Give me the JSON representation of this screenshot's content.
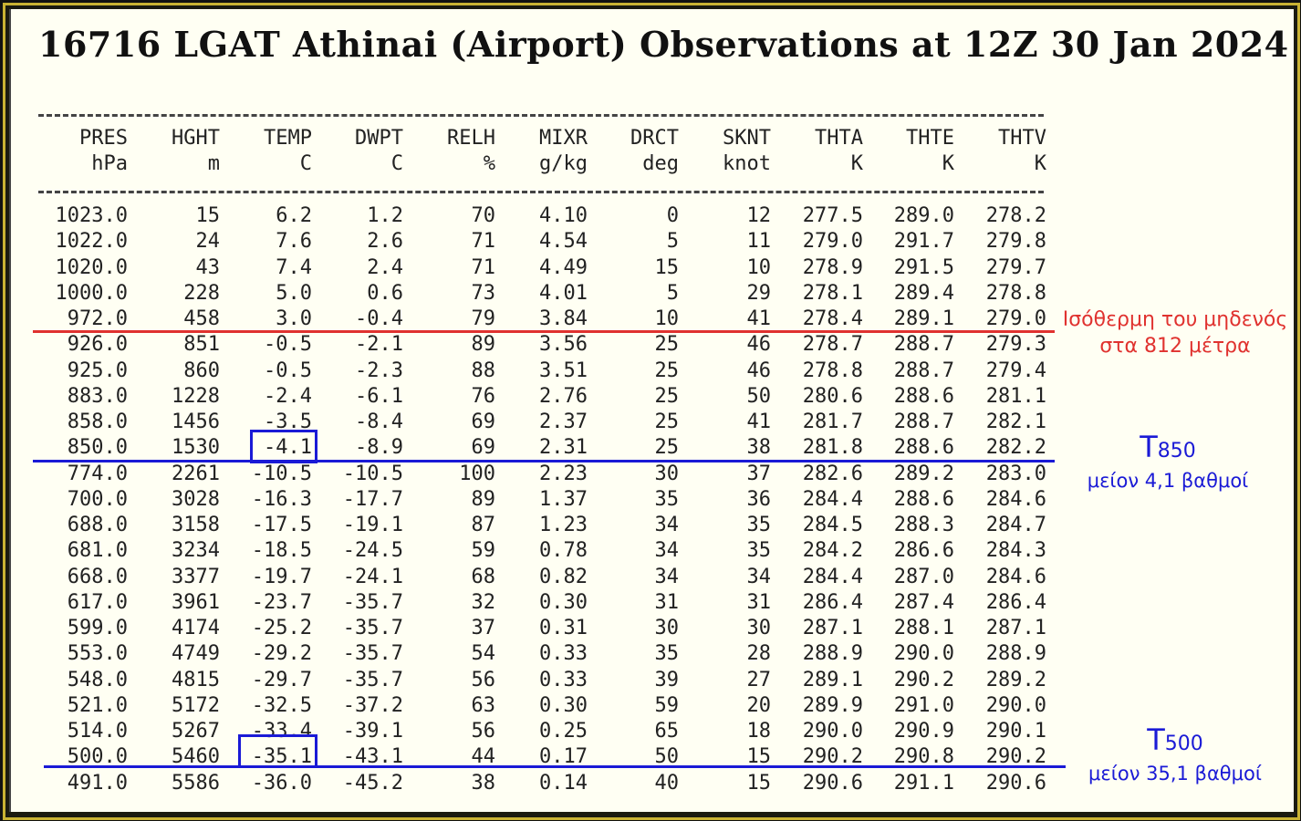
{
  "title": "16716 LGAT Athinai (Airport) Observations at 12Z 30 Jan 2024",
  "columns": [
    {
      "name": "PRES",
      "unit": "hPa"
    },
    {
      "name": "HGHT",
      "unit": "m"
    },
    {
      "name": "TEMP",
      "unit": "C"
    },
    {
      "name": "DWPT",
      "unit": "C"
    },
    {
      "name": "RELH",
      "unit": "%"
    },
    {
      "name": "MIXR",
      "unit": "g/kg"
    },
    {
      "name": "DRCT",
      "unit": "deg"
    },
    {
      "name": "SKNT",
      "unit": "knot"
    },
    {
      "name": "THTA",
      "unit": "K"
    },
    {
      "name": "THTE",
      "unit": "K"
    },
    {
      "name": "THTV",
      "unit": "K"
    }
  ],
  "rows": [
    [
      "1023.0",
      "15",
      "6.2",
      "1.2",
      "70",
      "4.10",
      "0",
      "12",
      "277.5",
      "289.0",
      "278.2"
    ],
    [
      "1022.0",
      "24",
      "7.6",
      "2.6",
      "71",
      "4.54",
      "5",
      "11",
      "279.0",
      "291.7",
      "279.8"
    ],
    [
      "1020.0",
      "43",
      "7.4",
      "2.4",
      "71",
      "4.49",
      "15",
      "10",
      "278.9",
      "291.5",
      "279.7"
    ],
    [
      "1000.0",
      "228",
      "5.0",
      "0.6",
      "73",
      "4.01",
      "5",
      "29",
      "278.1",
      "289.4",
      "278.8"
    ],
    [
      "972.0",
      "458",
      "3.0",
      "-0.4",
      "79",
      "3.84",
      "10",
      "41",
      "278.4",
      "289.1",
      "279.0"
    ],
    [
      "926.0",
      "851",
      "-0.5",
      "-2.1",
      "89",
      "3.56",
      "25",
      "46",
      "278.7",
      "288.7",
      "279.3"
    ],
    [
      "925.0",
      "860",
      "-0.5",
      "-2.3",
      "88",
      "3.51",
      "25",
      "46",
      "278.8",
      "288.7",
      "279.4"
    ],
    [
      "883.0",
      "1228",
      "-2.4",
      "-6.1",
      "76",
      "2.76",
      "25",
      "50",
      "280.6",
      "288.6",
      "281.1"
    ],
    [
      "858.0",
      "1456",
      "-3.5",
      "-8.4",
      "69",
      "2.37",
      "25",
      "41",
      "281.7",
      "288.7",
      "282.1"
    ],
    [
      "850.0",
      "1530",
      "-4.1",
      "-8.9",
      "69",
      "2.31",
      "25",
      "38",
      "281.8",
      "288.6",
      "282.2"
    ],
    [
      "774.0",
      "2261",
      "-10.5",
      "-10.5",
      "100",
      "2.23",
      "30",
      "37",
      "282.6",
      "289.2",
      "283.0"
    ],
    [
      "700.0",
      "3028",
      "-16.3",
      "-17.7",
      "89",
      "1.37",
      "35",
      "36",
      "284.4",
      "288.6",
      "284.6"
    ],
    [
      "688.0",
      "3158",
      "-17.5",
      "-19.1",
      "87",
      "1.23",
      "34",
      "35",
      "284.5",
      "288.3",
      "284.7"
    ],
    [
      "681.0",
      "3234",
      "-18.5",
      "-24.5",
      "59",
      "0.78",
      "34",
      "35",
      "284.2",
      "286.6",
      "284.3"
    ],
    [
      "668.0",
      "3377",
      "-19.7",
      "-24.1",
      "68",
      "0.82",
      "34",
      "34",
      "284.4",
      "287.0",
      "284.6"
    ],
    [
      "617.0",
      "3961",
      "-23.7",
      "-35.7",
      "32",
      "0.30",
      "31",
      "31",
      "286.4",
      "287.4",
      "286.4"
    ],
    [
      "599.0",
      "4174",
      "-25.2",
      "-35.7",
      "37",
      "0.31",
      "30",
      "30",
      "287.1",
      "288.1",
      "287.1"
    ],
    [
      "553.0",
      "4749",
      "-29.2",
      "-35.7",
      "54",
      "0.33",
      "35",
      "28",
      "288.9",
      "290.0",
      "288.9"
    ],
    [
      "548.0",
      "4815",
      "-29.7",
      "-35.7",
      "56",
      "0.33",
      "39",
      "27",
      "289.1",
      "290.2",
      "289.2"
    ],
    [
      "521.0",
      "5172",
      "-32.5",
      "-37.2",
      "63",
      "0.30",
      "59",
      "20",
      "289.9",
      "291.0",
      "290.0"
    ],
    [
      "514.0",
      "5267",
      "-33.4",
      "-39.1",
      "56",
      "0.25",
      "65",
      "18",
      "290.0",
      "290.9",
      "290.1"
    ],
    [
      "500.0",
      "5460",
      "-35.1",
      "-43.1",
      "44",
      "0.17",
      "50",
      "15",
      "290.2",
      "290.8",
      "290.2"
    ],
    [
      "491.0",
      "5586",
      "-36.0",
      "-45.2",
      "38",
      "0.14",
      "40",
      "15",
      "290.6",
      "291.1",
      "290.6"
    ]
  ],
  "annotations": {
    "freezing_level_line1": "Ισόθερμη του μηδενός",
    "freezing_level_line2": "στα 812 μέτρα",
    "t850_label": "T",
    "t850_sub": "850",
    "t850_text": "μείον 4,1 βαθμοί",
    "t500_label": "T",
    "t500_sub": "500",
    "t500_text": "μείον 35,1 βαθμοί"
  },
  "colors": {
    "freezing_line": "#e0322f",
    "level_lines": "#1a1ad6"
  }
}
